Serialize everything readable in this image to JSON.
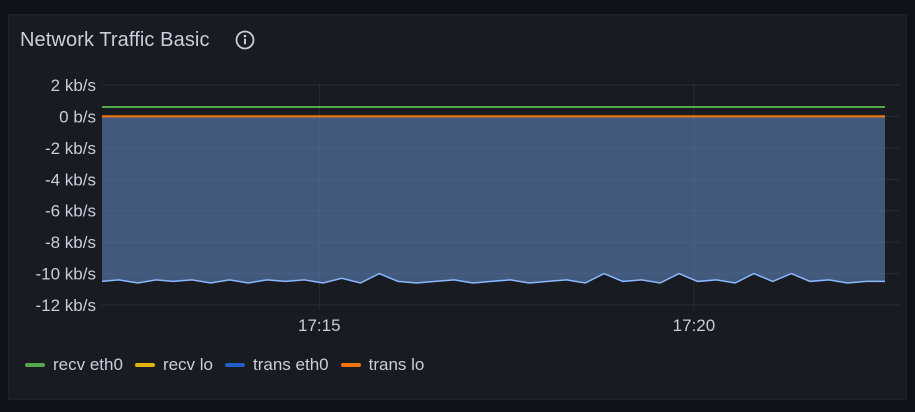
{
  "panel": {
    "title": "Network Traffic Basic"
  },
  "icons": {
    "info": "info-circle-icon"
  },
  "chart_data": {
    "type": "area",
    "title": "Network Traffic Basic",
    "xlabel": "",
    "ylabel": "",
    "y_ticks": [
      "2 kb/s",
      "0 b/s",
      "-2 kb/s",
      "-4 kb/s",
      "-6 kb/s",
      "-8 kb/s",
      "-10 kb/s",
      "-12 kb/s"
    ],
    "y_tick_values": [
      2,
      0,
      -2,
      -4,
      -6,
      -8,
      -10,
      -12
    ],
    "ylim": [
      -12,
      2
    ],
    "x_ticks": [
      "17:15",
      "17:20"
    ],
    "x_tick_minutes": [
      15,
      20
    ],
    "xlim_minutes": [
      12.1,
      22.55
    ],
    "grid": true,
    "legend_position": "bottom-left",
    "unit": "kb/s",
    "series": [
      {
        "name": "recv eth0",
        "color": "#56a64b",
        "fill": false,
        "x": [
          12.1,
          22.55
        ],
        "values": [
          0.6,
          0.6
        ]
      },
      {
        "name": "recv lo",
        "color": "#e0b400",
        "fill": false,
        "x": [
          12.1,
          22.55
        ],
        "values": [
          0.0,
          0.0
        ]
      },
      {
        "name": "trans eth0",
        "color": "#8ab8ff",
        "fill": true,
        "x": [
          12.1,
          12.32,
          12.58,
          12.82,
          13.05,
          13.3,
          13.55,
          13.8,
          14.05,
          14.3,
          14.55,
          14.8,
          15.05,
          15.3,
          15.55,
          15.8,
          16.05,
          16.3,
          16.55,
          16.8,
          17.05,
          17.3,
          17.55,
          17.8,
          18.05,
          18.3,
          18.55,
          18.8,
          19.05,
          19.3,
          19.55,
          19.8,
          20.05,
          20.3,
          20.55,
          20.8,
          21.05,
          21.3,
          21.55,
          21.8,
          22.05,
          22.3,
          22.55
        ],
        "values": [
          -10.5,
          -10.4,
          -10.6,
          -10.4,
          -10.5,
          -10.4,
          -10.6,
          -10.4,
          -10.6,
          -10.4,
          -10.5,
          -10.4,
          -10.6,
          -10.3,
          -10.6,
          -10.0,
          -10.5,
          -10.6,
          -10.5,
          -10.4,
          -10.6,
          -10.5,
          -10.4,
          -10.6,
          -10.5,
          -10.4,
          -10.6,
          -10.0,
          -10.5,
          -10.4,
          -10.6,
          -10.0,
          -10.5,
          -10.4,
          -10.6,
          -10.0,
          -10.5,
          -10.0,
          -10.5,
          -10.4,
          -10.6,
          -10.5,
          -10.5
        ]
      },
      {
        "name": "trans lo",
        "color": "#f2750a",
        "fill": false,
        "x": [
          12.1,
          22.55
        ],
        "values": [
          0.0,
          0.0
        ]
      }
    ]
  }
}
